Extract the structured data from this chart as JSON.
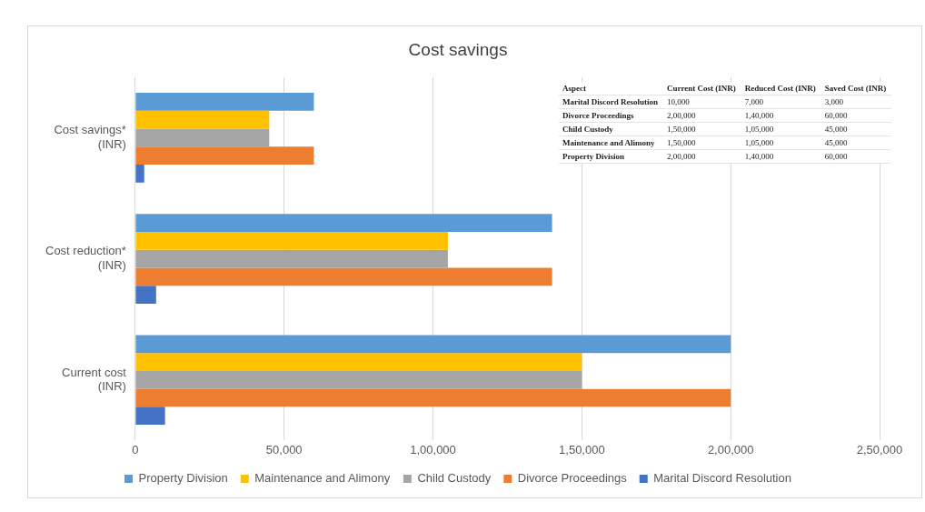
{
  "chart_data": {
    "type": "bar",
    "orientation": "horizontal",
    "title": "Cost savings",
    "categories": [
      "Cost savings* (INR)",
      "Cost reduction* (INR)",
      "Current cost (INR)"
    ],
    "series": [
      {
        "name": "Property Division",
        "color": "#5b9bd5",
        "values": [
          60000,
          140000,
          200000
        ]
      },
      {
        "name": "Maintenance and Alimony",
        "color": "#ffc000",
        "values": [
          45000,
          105000,
          150000
        ]
      },
      {
        "name": "Child Custody",
        "color": "#a5a5a5",
        "values": [
          45000,
          105000,
          150000
        ]
      },
      {
        "name": "Divorce Proceedings",
        "color": "#ed7d31",
        "values": [
          60000,
          140000,
          200000
        ]
      },
      {
        "name": "Marital Discord Resolution",
        "color": "#4472c4",
        "values": [
          3000,
          7000,
          10000
        ]
      }
    ],
    "xlim": [
      0,
      250000
    ],
    "xticks": [
      0,
      {
        "value": 50000,
        "label": "50,000"
      },
      {
        "value": 100000,
        "label": "1,00,000"
      },
      {
        "value": 150000,
        "label": "1,50,000"
      },
      {
        "value": 200000,
        "label": "2,00,000"
      },
      {
        "value": 250000,
        "label": "2,50,000"
      }
    ],
    "grid": "x",
    "legend": "bottom",
    "annotations": [
      "Aspect",
      "Current Cost (INR)",
      "Reduced Cost (INR)",
      "Saved Cost (INR)",
      "Marital Discord Resolution",
      "10,000",
      "7,000",
      "3,000",
      "Divorce Proceedings",
      "2,00,000",
      "1,40,000",
      "60,000",
      "Child Custody",
      "1,50,000",
      "1,05,000",
      "45,000",
      "Maintenance and Alimony",
      "1,50,000",
      "1,05,000",
      "45,000",
      "Property Division",
      "2,00,000",
      "1,40,000",
      "60,000"
    ]
  }
}
